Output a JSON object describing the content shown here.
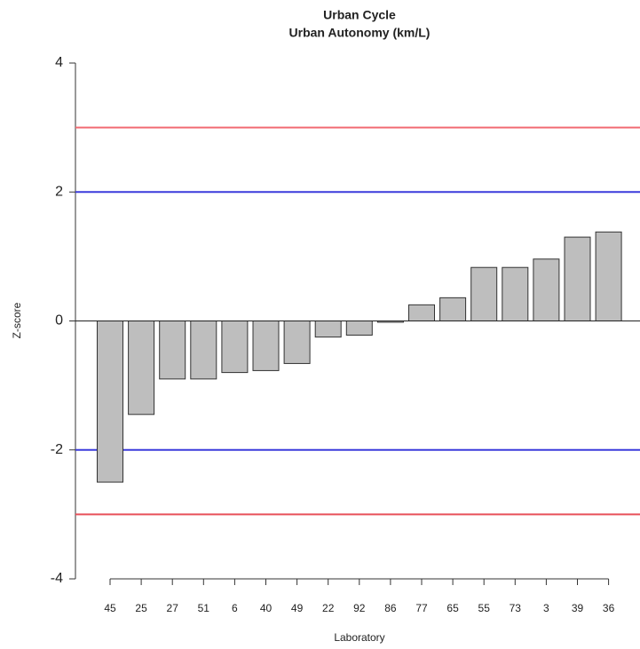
{
  "chart_data": {
    "type": "bar",
    "title": "Urban Cycle",
    "subtitle": "Urban Autonomy (km/L)",
    "x_label": "Laboratory",
    "y_label": "Z-score",
    "categories": [
      "45",
      "25",
      "27",
      "51",
      "6",
      "40",
      "49",
      "22",
      "92",
      "86",
      "77",
      "65",
      "55",
      "73",
      "3",
      "39",
      "36"
    ],
    "values": [
      -2.5,
      -1.45,
      -0.9,
      -0.9,
      -0.8,
      -0.77,
      -0.66,
      -0.25,
      -0.22,
      -0.02,
      0.25,
      0.36,
      0.83,
      0.83,
      0.96,
      1.3,
      1.38
    ],
    "color": "#bebebe",
    "ylim": [
      -4,
      4
    ],
    "yticks": [
      -4,
      -2,
      0,
      2,
      4
    ],
    "reference_lines": [
      {
        "value": 3,
        "color": "#f26b73"
      },
      {
        "value": 2,
        "color": "#3b3bdc"
      },
      {
        "value": -2,
        "color": "#3b3bdc"
      },
      {
        "value": -3,
        "color": "#e8505a"
      }
    ]
  }
}
